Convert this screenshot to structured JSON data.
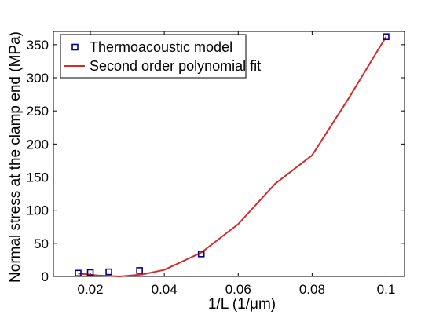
{
  "chart_data": {
    "type": "scatter",
    "title": "",
    "xlabel": "1/L (1/μm)",
    "ylabel": "Normal stress at the clamp end (MPa)",
    "xlim": [
      0.01,
      0.105
    ],
    "ylim": [
      0,
      370
    ],
    "xticks": [
      0.02,
      0.04,
      0.06,
      0.08,
      0.1
    ],
    "xtick_labels": [
      "0.02",
      "0.04",
      "0.06",
      "0.08",
      "0.1"
    ],
    "yticks": [
      0,
      50,
      100,
      150,
      200,
      250,
      300,
      350
    ],
    "ytick_labels": [
      "0",
      "50",
      "100",
      "150",
      "200",
      "250",
      "300",
      "350"
    ],
    "grid": false,
    "legend_position": "top-left",
    "series": [
      {
        "name": "Thermoacoustic model",
        "kind": "markers",
        "marker": "square",
        "color": "#00008b",
        "x": [
          0.0167,
          0.02,
          0.025,
          0.0333,
          0.05,
          0.1
        ],
        "y": [
          5,
          6,
          7,
          9,
          34,
          362
        ]
      },
      {
        "name": "Second order polynomial fit",
        "kind": "line",
        "color": "#d42a2a",
        "x": [
          0.0167,
          0.022,
          0.028,
          0.034,
          0.04,
          0.05,
          0.06,
          0.07,
          0.08,
          0.09,
          0.1
        ],
        "y": [
          4.5,
          1.5,
          0,
          3,
          10,
          36,
          79,
          140,
          183,
          270,
          362
        ]
      }
    ]
  }
}
